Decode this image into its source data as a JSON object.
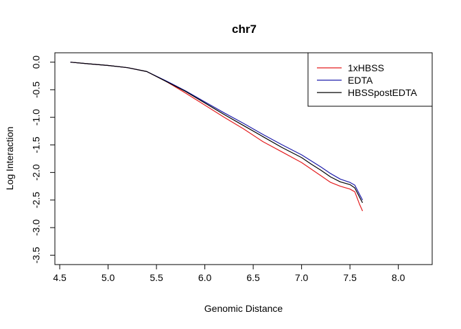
{
  "chart_data": {
    "type": "line",
    "title": "chr7",
    "xlabel": "Genomic Distance",
    "ylabel": "Log Interaction",
    "xlim": [
      4.45,
      8.35
    ],
    "ylim": [
      -3.67,
      0.17
    ],
    "xticks": [
      4.5,
      5.0,
      5.5,
      6.0,
      6.5,
      7.0,
      7.5,
      8.0
    ],
    "xtick_labels": [
      "4.5",
      "5.0",
      "5.5",
      "6.0",
      "6.5",
      "7.0",
      "7.5",
      "8.0"
    ],
    "yticks": [
      0.0,
      -0.5,
      -1.0,
      -1.5,
      -2.0,
      -2.5,
      -3.0,
      -3.5
    ],
    "ytick_labels": [
      "0.0",
      "-0.5",
      "-1.0",
      "-1.5",
      "-2.0",
      "-2.5",
      "-3.0",
      "-3.5"
    ],
    "grid": false,
    "legend_position": "top-right",
    "series": [
      {
        "name": "1xHBSS",
        "color": "#e31a1c",
        "x": [
          4.61,
          4.8,
          5.0,
          5.2,
          5.4,
          5.6,
          5.8,
          6.0,
          6.2,
          6.4,
          6.6,
          6.8,
          7.0,
          7.1,
          7.2,
          7.3,
          7.4,
          7.5,
          7.55,
          7.6,
          7.63
        ],
        "y": [
          0.0,
          -0.03,
          -0.06,
          -0.1,
          -0.17,
          -0.35,
          -0.56,
          -0.78,
          -1.0,
          -1.21,
          -1.44,
          -1.63,
          -1.82,
          -1.94,
          -2.06,
          -2.18,
          -2.25,
          -2.3,
          -2.35,
          -2.58,
          -2.7
        ]
      },
      {
        "name": "EDTA",
        "color": "#1a1aaa",
        "x": [
          4.61,
          4.8,
          5.0,
          5.2,
          5.4,
          5.6,
          5.8,
          6.0,
          6.2,
          6.4,
          6.6,
          6.8,
          7.0,
          7.1,
          7.2,
          7.3,
          7.4,
          7.5,
          7.55,
          7.6,
          7.63
        ],
        "y": [
          0.0,
          -0.03,
          -0.06,
          -0.1,
          -0.17,
          -0.34,
          -0.52,
          -0.72,
          -0.92,
          -1.11,
          -1.31,
          -1.5,
          -1.68,
          -1.79,
          -1.9,
          -2.02,
          -2.12,
          -2.18,
          -2.23,
          -2.4,
          -2.5
        ]
      },
      {
        "name": "HBSSpostEDTA",
        "color": "#000000",
        "x": [
          4.61,
          4.8,
          5.0,
          5.2,
          5.4,
          5.6,
          5.8,
          6.0,
          6.2,
          6.4,
          6.6,
          6.8,
          7.0,
          7.1,
          7.2,
          7.3,
          7.4,
          7.5,
          7.55,
          7.6,
          7.63
        ],
        "y": [
          0.0,
          -0.03,
          -0.06,
          -0.1,
          -0.17,
          -0.35,
          -0.53,
          -0.74,
          -0.95,
          -1.15,
          -1.35,
          -1.55,
          -1.73,
          -1.85,
          -1.96,
          -2.08,
          -2.17,
          -2.22,
          -2.28,
          -2.45,
          -2.55
        ]
      }
    ]
  }
}
